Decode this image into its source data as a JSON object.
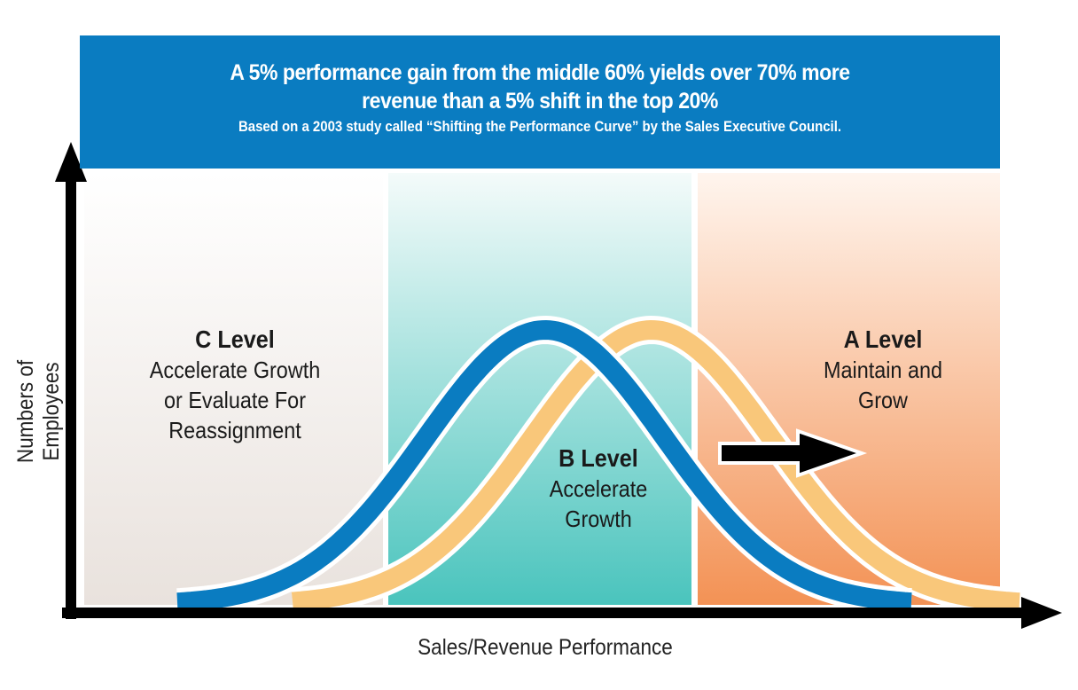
{
  "banner": {
    "headline_line1": "A 5% performance gain from the middle 60% yields over 70% more",
    "headline_line2": "revenue than a 5% shift in the top 20%",
    "source": "Based on a 2003 study called “Shifting the Performance Curve”  by the Sales Executive Council."
  },
  "regions": {
    "c": {
      "title": "C Level",
      "line1": "Accelerate Growth",
      "line2": "or Evaluate For",
      "line3": "Reassignment"
    },
    "b": {
      "title": "B Level",
      "line1": "Accelerate",
      "line2": "Growth"
    },
    "a": {
      "title": "A Level",
      "line1": "Maintain and",
      "line2": "Grow"
    }
  },
  "axes": {
    "y_label": "Numbers of Employees",
    "x_label": "Sales/Revenue Performance"
  },
  "colors": {
    "banner": "#0a7cc1",
    "current_curve": "#0a7cc1",
    "shifted_curve": "#f9c77a",
    "c_region": "#ece6e2",
    "b_region": "#4fc6bf",
    "a_region": "#f3955a"
  }
}
